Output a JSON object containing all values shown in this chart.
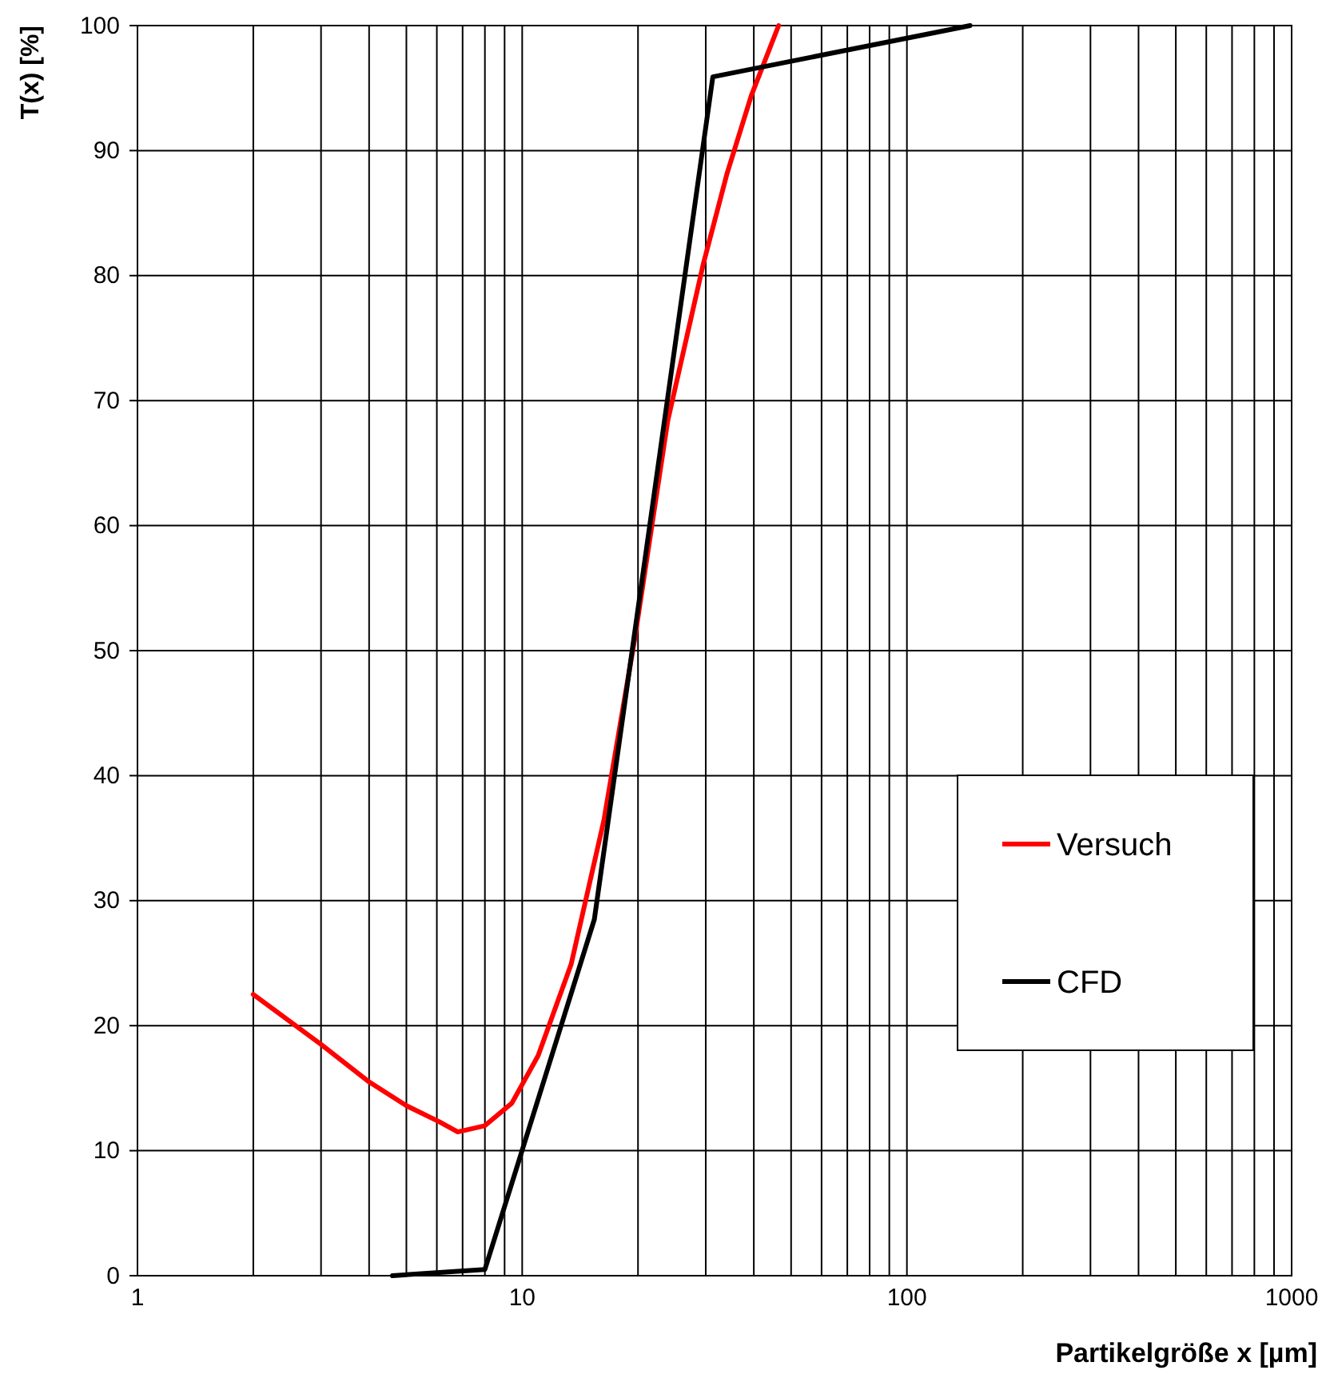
{
  "chart_data": {
    "type": "line",
    "xlabel": "Partikelgröße x [µm]",
    "ylabel": "T(x) [%]",
    "log": "x",
    "grid": true,
    "legend": "right",
    "marker": "none",
    "line_style": "solid",
    "xlim": [
      1,
      1000
    ],
    "ylim": [
      0,
      100
    ],
    "xticks": [
      1,
      {
        "value": 2,
        "label": null
      },
      {
        "value": 3,
        "label": null
      },
      {
        "value": 4,
        "label": null
      },
      {
        "value": 5,
        "label": null
      },
      {
        "value": 6,
        "label": null
      },
      {
        "value": 7,
        "label": null
      },
      {
        "value": 8,
        "label": null
      },
      {
        "value": 9,
        "label": null
      },
      10,
      {
        "value": 20,
        "label": null
      },
      {
        "value": 30,
        "label": null
      },
      {
        "value": 40,
        "label": null
      },
      {
        "value": 50,
        "label": null
      },
      {
        "value": 60,
        "label": null
      },
      {
        "value": 70,
        "label": null
      },
      {
        "value": 80,
        "label": null
      },
      {
        "value": 90,
        "label": null
      },
      100,
      {
        "value": 200,
        "label": null
      },
      {
        "value": 300,
        "label": null
      },
      {
        "value": 400,
        "label": null
      },
      {
        "value": 500,
        "label": null
      },
      {
        "value": 600,
        "label": null
      },
      {
        "value": 700,
        "label": null
      },
      {
        "value": 800,
        "label": null
      },
      {
        "value": 900,
        "label": null
      },
      1000
    ],
    "yticks": [
      0,
      10,
      20,
      30,
      40,
      50,
      60,
      70,
      80,
      90,
      100
    ],
    "series": [
      {
        "name": "Versuch",
        "color": "#ff0000",
        "x": [
          2,
          3,
          4,
          5,
          6.1,
          6.8,
          8,
          9.4,
          11,
          13.4,
          16.3,
          19.6,
          23.9,
          29.6,
          34.1,
          39.4,
          46.4
        ],
        "values": [
          22.5,
          18.5,
          15.5,
          13.6,
          12.3,
          11.5,
          12,
          13.8,
          17.6,
          24.9,
          36.4,
          50.9,
          68.4,
          81,
          88.2,
          94.4,
          100
        ]
      },
      {
        "name": "CFD",
        "color": "#000000",
        "x": [
          4.6,
          8,
          15.4,
          31.3,
          146
        ],
        "values": [
          0,
          0.5,
          28.5,
          95.9,
          100
        ]
      }
    ]
  }
}
